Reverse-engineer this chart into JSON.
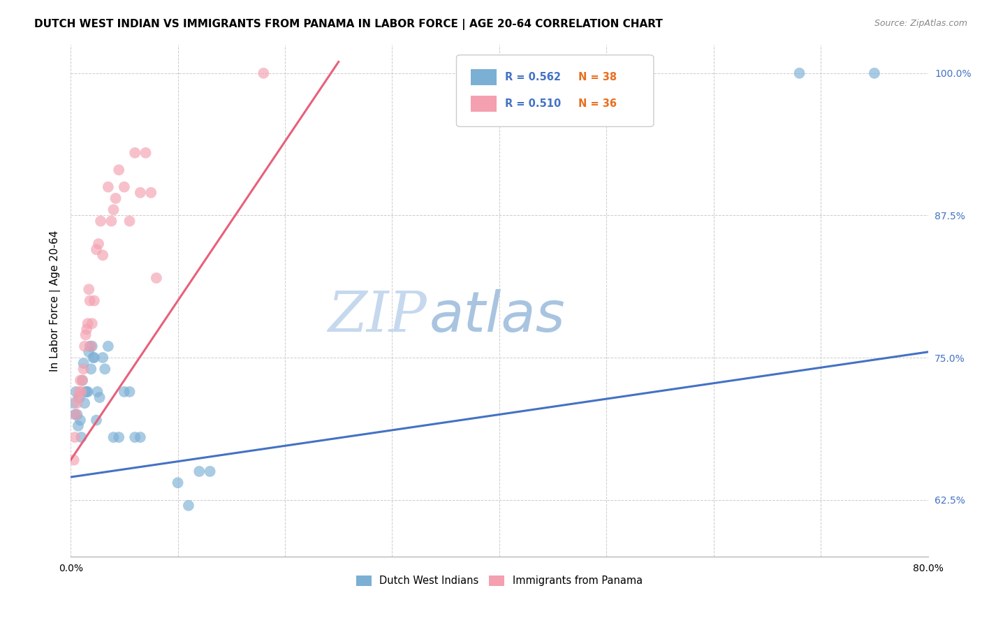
{
  "title": "DUTCH WEST INDIAN VS IMMIGRANTS FROM PANAMA IN LABOR FORCE | AGE 20-64 CORRELATION CHART",
  "source": "Source: ZipAtlas.com",
  "ylabel": "In Labor Force | Age 20-64",
  "xmin": 0.0,
  "xmax": 0.8,
  "ymin": 0.575,
  "ymax": 1.025,
  "yticks": [
    0.625,
    0.75,
    0.875,
    1.0
  ],
  "ytick_labels": [
    "62.5%",
    "75.0%",
    "87.5%",
    "100.0%"
  ],
  "xticks": [
    0.0,
    0.1,
    0.2,
    0.3,
    0.4,
    0.5,
    0.6,
    0.7,
    0.8
  ],
  "xtick_labels": [
    "0.0%",
    "",
    "",
    "",
    "",
    "",
    "",
    "",
    "80.0%"
  ],
  "blue_R": 0.562,
  "blue_N": 38,
  "pink_R": 0.51,
  "pink_N": 36,
  "blue_color": "#7bafd4",
  "pink_color": "#f4a0b0",
  "blue_line_color": "#4472c4",
  "pink_line_color": "#e8607a",
  "blue_scatter_x": [
    0.003,
    0.004,
    0.005,
    0.006,
    0.007,
    0.008,
    0.009,
    0.01,
    0.011,
    0.012,
    0.013,
    0.014,
    0.015,
    0.016,
    0.017,
    0.018,
    0.019,
    0.02,
    0.021,
    0.022,
    0.024,
    0.025,
    0.027,
    0.03,
    0.032,
    0.035,
    0.04,
    0.045,
    0.05,
    0.055,
    0.06,
    0.065,
    0.1,
    0.11,
    0.12,
    0.13,
    0.68,
    0.75
  ],
  "blue_scatter_y": [
    0.71,
    0.7,
    0.72,
    0.7,
    0.69,
    0.715,
    0.695,
    0.68,
    0.73,
    0.745,
    0.71,
    0.72,
    0.72,
    0.72,
    0.755,
    0.76,
    0.74,
    0.76,
    0.75,
    0.75,
    0.695,
    0.72,
    0.715,
    0.75,
    0.74,
    0.76,
    0.68,
    0.68,
    0.72,
    0.72,
    0.68,
    0.68,
    0.64,
    0.62,
    0.65,
    0.65,
    1.0,
    1.0
  ],
  "pink_scatter_x": [
    0.003,
    0.004,
    0.005,
    0.006,
    0.007,
    0.008,
    0.009,
    0.01,
    0.011,
    0.012,
    0.013,
    0.014,
    0.015,
    0.016,
    0.017,
    0.018,
    0.019,
    0.02,
    0.022,
    0.024,
    0.026,
    0.028,
    0.03,
    0.035,
    0.038,
    0.04,
    0.042,
    0.045,
    0.05,
    0.055,
    0.06,
    0.065,
    0.07,
    0.075,
    0.08,
    0.18
  ],
  "pink_scatter_y": [
    0.66,
    0.68,
    0.7,
    0.71,
    0.715,
    0.72,
    0.73,
    0.72,
    0.73,
    0.74,
    0.76,
    0.77,
    0.775,
    0.78,
    0.81,
    0.8,
    0.76,
    0.78,
    0.8,
    0.845,
    0.85,
    0.87,
    0.84,
    0.9,
    0.87,
    0.88,
    0.89,
    0.915,
    0.9,
    0.87,
    0.93,
    0.895,
    0.93,
    0.895,
    0.82,
    1.0
  ],
  "bottom_legend_blue": "Dutch West Indians",
  "bottom_legend_pink": "Immigrants from Panama",
  "blue_line_x0": 0.0,
  "blue_line_y0": 0.645,
  "blue_line_x1": 0.8,
  "blue_line_y1": 0.755,
  "pink_line_x0": 0.0,
  "pink_line_y0": 0.66,
  "pink_line_x1": 0.25,
  "pink_line_y1": 1.01,
  "title_fontsize": 11,
  "axis_label_fontsize": 11,
  "tick_fontsize": 10,
  "source_fontsize": 9
}
